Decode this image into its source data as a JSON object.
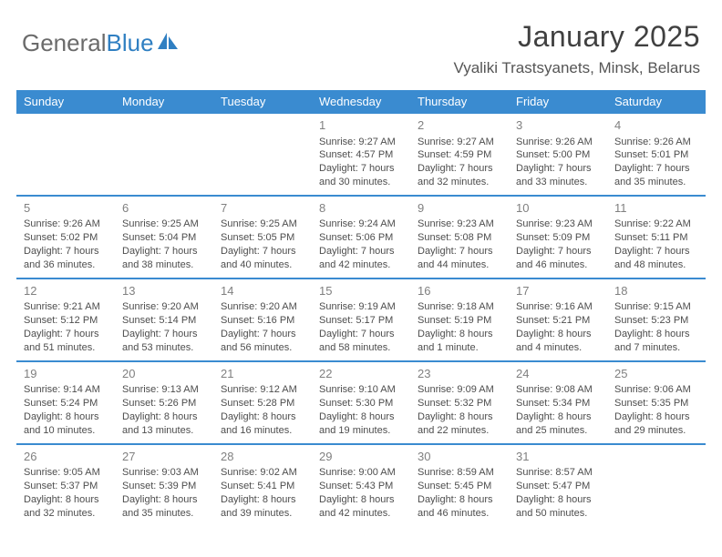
{
  "brand": {
    "part1": "General",
    "part2": "Blue"
  },
  "title": {
    "month": "January 2025",
    "location": "Vyaliki Trastsyanets, Minsk, Belarus"
  },
  "style": {
    "accent": "#3a8bd0",
    "brand_gray": "#6b6b6b",
    "brand_blue": "#2f7fc2",
    "text_color": "#4d4d4d",
    "daynum_color": "#808080",
    "bg": "#ffffff",
    "head_font_size": 13,
    "cell_font_size": 11,
    "title_font_size": 32,
    "loc_font_size": 17
  },
  "day_labels": [
    "Sunday",
    "Monday",
    "Tuesday",
    "Wednesday",
    "Thursday",
    "Friday",
    "Saturday"
  ],
  "weeks": [
    [
      null,
      null,
      null,
      {
        "n": "1",
        "sr": "Sunrise: 9:27 AM",
        "ss": "Sunset: 4:57 PM",
        "dl1": "Daylight: 7 hours",
        "dl2": "and 30 minutes."
      },
      {
        "n": "2",
        "sr": "Sunrise: 9:27 AM",
        "ss": "Sunset: 4:59 PM",
        "dl1": "Daylight: 7 hours",
        "dl2": "and 32 minutes."
      },
      {
        "n": "3",
        "sr": "Sunrise: 9:26 AM",
        "ss": "Sunset: 5:00 PM",
        "dl1": "Daylight: 7 hours",
        "dl2": "and 33 minutes."
      },
      {
        "n": "4",
        "sr": "Sunrise: 9:26 AM",
        "ss": "Sunset: 5:01 PM",
        "dl1": "Daylight: 7 hours",
        "dl2": "and 35 minutes."
      }
    ],
    [
      {
        "n": "5",
        "sr": "Sunrise: 9:26 AM",
        "ss": "Sunset: 5:02 PM",
        "dl1": "Daylight: 7 hours",
        "dl2": "and 36 minutes."
      },
      {
        "n": "6",
        "sr": "Sunrise: 9:25 AM",
        "ss": "Sunset: 5:04 PM",
        "dl1": "Daylight: 7 hours",
        "dl2": "and 38 minutes."
      },
      {
        "n": "7",
        "sr": "Sunrise: 9:25 AM",
        "ss": "Sunset: 5:05 PM",
        "dl1": "Daylight: 7 hours",
        "dl2": "and 40 minutes."
      },
      {
        "n": "8",
        "sr": "Sunrise: 9:24 AM",
        "ss": "Sunset: 5:06 PM",
        "dl1": "Daylight: 7 hours",
        "dl2": "and 42 minutes."
      },
      {
        "n": "9",
        "sr": "Sunrise: 9:23 AM",
        "ss": "Sunset: 5:08 PM",
        "dl1": "Daylight: 7 hours",
        "dl2": "and 44 minutes."
      },
      {
        "n": "10",
        "sr": "Sunrise: 9:23 AM",
        "ss": "Sunset: 5:09 PM",
        "dl1": "Daylight: 7 hours",
        "dl2": "and 46 minutes."
      },
      {
        "n": "11",
        "sr": "Sunrise: 9:22 AM",
        "ss": "Sunset: 5:11 PM",
        "dl1": "Daylight: 7 hours",
        "dl2": "and 48 minutes."
      }
    ],
    [
      {
        "n": "12",
        "sr": "Sunrise: 9:21 AM",
        "ss": "Sunset: 5:12 PM",
        "dl1": "Daylight: 7 hours",
        "dl2": "and 51 minutes."
      },
      {
        "n": "13",
        "sr": "Sunrise: 9:20 AM",
        "ss": "Sunset: 5:14 PM",
        "dl1": "Daylight: 7 hours",
        "dl2": "and 53 minutes."
      },
      {
        "n": "14",
        "sr": "Sunrise: 9:20 AM",
        "ss": "Sunset: 5:16 PM",
        "dl1": "Daylight: 7 hours",
        "dl2": "and 56 minutes."
      },
      {
        "n": "15",
        "sr": "Sunrise: 9:19 AM",
        "ss": "Sunset: 5:17 PM",
        "dl1": "Daylight: 7 hours",
        "dl2": "and 58 minutes."
      },
      {
        "n": "16",
        "sr": "Sunrise: 9:18 AM",
        "ss": "Sunset: 5:19 PM",
        "dl1": "Daylight: 8 hours",
        "dl2": "and 1 minute."
      },
      {
        "n": "17",
        "sr": "Sunrise: 9:16 AM",
        "ss": "Sunset: 5:21 PM",
        "dl1": "Daylight: 8 hours",
        "dl2": "and 4 minutes."
      },
      {
        "n": "18",
        "sr": "Sunrise: 9:15 AM",
        "ss": "Sunset: 5:23 PM",
        "dl1": "Daylight: 8 hours",
        "dl2": "and 7 minutes."
      }
    ],
    [
      {
        "n": "19",
        "sr": "Sunrise: 9:14 AM",
        "ss": "Sunset: 5:24 PM",
        "dl1": "Daylight: 8 hours",
        "dl2": "and 10 minutes."
      },
      {
        "n": "20",
        "sr": "Sunrise: 9:13 AM",
        "ss": "Sunset: 5:26 PM",
        "dl1": "Daylight: 8 hours",
        "dl2": "and 13 minutes."
      },
      {
        "n": "21",
        "sr": "Sunrise: 9:12 AM",
        "ss": "Sunset: 5:28 PM",
        "dl1": "Daylight: 8 hours",
        "dl2": "and 16 minutes."
      },
      {
        "n": "22",
        "sr": "Sunrise: 9:10 AM",
        "ss": "Sunset: 5:30 PM",
        "dl1": "Daylight: 8 hours",
        "dl2": "and 19 minutes."
      },
      {
        "n": "23",
        "sr": "Sunrise: 9:09 AM",
        "ss": "Sunset: 5:32 PM",
        "dl1": "Daylight: 8 hours",
        "dl2": "and 22 minutes."
      },
      {
        "n": "24",
        "sr": "Sunrise: 9:08 AM",
        "ss": "Sunset: 5:34 PM",
        "dl1": "Daylight: 8 hours",
        "dl2": "and 25 minutes."
      },
      {
        "n": "25",
        "sr": "Sunrise: 9:06 AM",
        "ss": "Sunset: 5:35 PM",
        "dl1": "Daylight: 8 hours",
        "dl2": "and 29 minutes."
      }
    ],
    [
      {
        "n": "26",
        "sr": "Sunrise: 9:05 AM",
        "ss": "Sunset: 5:37 PM",
        "dl1": "Daylight: 8 hours",
        "dl2": "and 32 minutes."
      },
      {
        "n": "27",
        "sr": "Sunrise: 9:03 AM",
        "ss": "Sunset: 5:39 PM",
        "dl1": "Daylight: 8 hours",
        "dl2": "and 35 minutes."
      },
      {
        "n": "28",
        "sr": "Sunrise: 9:02 AM",
        "ss": "Sunset: 5:41 PM",
        "dl1": "Daylight: 8 hours",
        "dl2": "and 39 minutes."
      },
      {
        "n": "29",
        "sr": "Sunrise: 9:00 AM",
        "ss": "Sunset: 5:43 PM",
        "dl1": "Daylight: 8 hours",
        "dl2": "and 42 minutes."
      },
      {
        "n": "30",
        "sr": "Sunrise: 8:59 AM",
        "ss": "Sunset: 5:45 PM",
        "dl1": "Daylight: 8 hours",
        "dl2": "and 46 minutes."
      },
      {
        "n": "31",
        "sr": "Sunrise: 8:57 AM",
        "ss": "Sunset: 5:47 PM",
        "dl1": "Daylight: 8 hours",
        "dl2": "and 50 minutes."
      },
      null
    ]
  ]
}
